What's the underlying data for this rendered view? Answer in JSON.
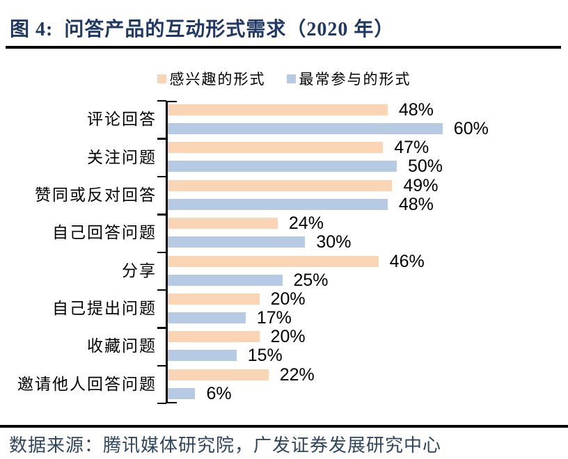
{
  "figure": {
    "title": "图 4:  问答产品的互动形式需求（2020 年）",
    "source": "数据来源：腾讯媒体研究院，广发证券发展研究中心"
  },
  "colors": {
    "title_text": "#1F3864",
    "source_text": "#2F4660",
    "axis": "#000000",
    "value_label_text": "#000000",
    "interested_fill": "#F9D5B5",
    "participated_fill": "#B6CAE3"
  },
  "legend": {
    "items": [
      {
        "label": "感兴趣的形式",
        "swatch": "#F9D5B5"
      },
      {
        "label": "最常参与的形式",
        "swatch": "#B6CAE3"
      }
    ]
  },
  "chart_data": {
    "type": "bar",
    "orientation": "horizontal",
    "title": "问答产品的互动形式需求（2020 年）",
    "categories": [
      "评论回答",
      "关注问题",
      "赞同或反对回答",
      "自己回答问题",
      "分享",
      "自己提出问题",
      "收藏问题",
      "邀请他人回答问题"
    ],
    "series": [
      {
        "name": "感兴趣的形式",
        "color": "#F9D5B5",
        "values": [
          48,
          47,
          49,
          24,
          46,
          20,
          20,
          22
        ]
      },
      {
        "name": "最常参与的形式",
        "color": "#B6CAE3",
        "values": [
          60,
          50,
          48,
          30,
          25,
          17,
          15,
          6
        ]
      }
    ],
    "value_suffix": "%",
    "data_labels": "outside-end",
    "xlim": [
      0,
      65
    ],
    "grid": false,
    "legend_position": "top"
  }
}
